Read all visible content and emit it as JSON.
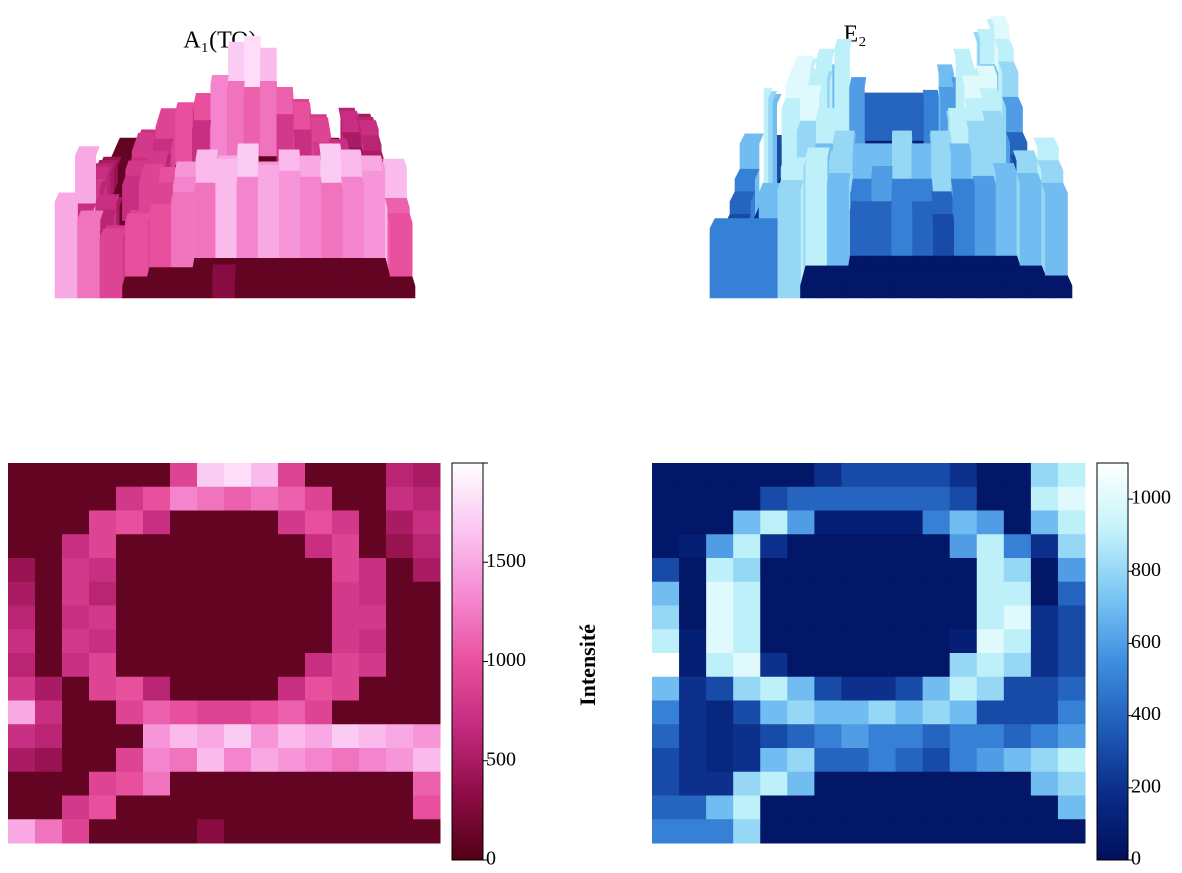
{
  "label": "Intensité",
  "chart_data": [
    {
      "type": "heatmap",
      "title": "A₁(TO)",
      "zlim": [
        0,
        2000
      ],
      "zticks": [
        0,
        500,
        1000,
        1500,
        {
          "value": 2000,
          "label": ""
        }
      ],
      "colors": [
        "#520014",
        "#8e0c46",
        "#c42a7e",
        "#e8509e",
        "#f58ad2",
        "#fbc6f2",
        "#ffffff"
      ],
      "z": [
        [
          100,
          100,
          100,
          100,
          100,
          100,
          900,
          1700,
          1800,
          1600,
          900,
          100,
          100,
          100,
          600,
          500
        ],
        [
          100,
          100,
          100,
          100,
          800,
          1000,
          1300,
          1200,
          1100,
          1200,
          1100,
          900,
          100,
          100,
          700,
          600
        ],
        [
          100,
          100,
          100,
          900,
          1000,
          700,
          100,
          100,
          100,
          100,
          800,
          1000,
          800,
          100,
          500,
          700
        ],
        [
          100,
          100,
          700,
          900,
          100,
          100,
          100,
          100,
          100,
          100,
          100,
          700,
          900,
          100,
          400,
          600
        ],
        [
          400,
          100,
          800,
          700,
          100,
          100,
          100,
          100,
          100,
          100,
          100,
          100,
          900,
          700,
          100,
          500
        ],
        [
          500,
          100,
          800,
          600,
          100,
          100,
          100,
          100,
          100,
          100,
          100,
          100,
          800,
          700,
          100,
          100
        ],
        [
          600,
          100,
          700,
          800,
          100,
          100,
          100,
          100,
          100,
          100,
          100,
          100,
          800,
          800,
          100,
          100
        ],
        [
          700,
          100,
          800,
          700,
          100,
          100,
          100,
          100,
          100,
          100,
          100,
          100,
          800,
          700,
          100,
          100
        ],
        [
          600,
          100,
          700,
          900,
          100,
          100,
          100,
          100,
          100,
          100,
          100,
          700,
          900,
          800,
          100,
          100
        ],
        [
          800,
          500,
          100,
          900,
          1000,
          600,
          100,
          100,
          100,
          100,
          700,
          1000,
          900,
          100,
          100,
          100
        ],
        [
          1500,
          700,
          100,
          100,
          900,
          1100,
          1000,
          900,
          900,
          1000,
          1100,
          900,
          100,
          100,
          100,
          100
        ],
        [
          700,
          600,
          100,
          100,
          100,
          1400,
          1600,
          1500,
          1700,
          1400,
          1600,
          1500,
          1700,
          1600,
          1500,
          1400
        ],
        [
          500,
          400,
          100,
          100,
          900,
          1300,
          1200,
          1600,
          1300,
          1500,
          1400,
          1300,
          1200,
          1300,
          1400,
          1600
        ],
        [
          100,
          100,
          100,
          900,
          1000,
          1200,
          100,
          100,
          100,
          100,
          100,
          100,
          100,
          100,
          100,
          1100
        ],
        [
          100,
          100,
          800,
          1000,
          100,
          100,
          100,
          100,
          100,
          100,
          100,
          100,
          100,
          100,
          100,
          1000
        ],
        [
          1500,
          1200,
          900,
          100,
          100,
          100,
          100,
          300,
          100,
          100,
          100,
          100,
          100,
          100,
          100,
          100
        ]
      ]
    },
    {
      "type": "heatmap",
      "title": "E₂",
      "zlim": [
        0,
        1100
      ],
      "zticks": [
        0,
        200,
        400,
        600,
        800,
        1000
      ],
      "colors": [
        "#000f5c",
        "#0a2c88",
        "#1f5cb8",
        "#3f8ee0",
        "#7cc6f4",
        "#c4f4fa",
        "#ffffff"
      ],
      "z": [
        [
          50,
          50,
          50,
          50,
          50,
          50,
          200,
          300,
          300,
          300,
          300,
          200,
          50,
          50,
          800,
          900
        ],
        [
          50,
          50,
          50,
          50,
          300,
          400,
          400,
          400,
          400,
          400,
          400,
          300,
          50,
          50,
          900,
          1000
        ],
        [
          50,
          50,
          50,
          700,
          900,
          600,
          100,
          100,
          100,
          100,
          500,
          700,
          600,
          50,
          700,
          900
        ],
        [
          50,
          100,
          600,
          900,
          200,
          50,
          50,
          50,
          50,
          50,
          50,
          600,
          900,
          500,
          200,
          800
        ],
        [
          300,
          50,
          900,
          800,
          50,
          50,
          50,
          50,
          50,
          50,
          50,
          50,
          900,
          800,
          50,
          600
        ],
        [
          700,
          50,
          1000,
          900,
          50,
          50,
          50,
          50,
          50,
          50,
          50,
          50,
          900,
          900,
          50,
          400
        ],
        [
          800,
          50,
          1000,
          900,
          50,
          50,
          50,
          50,
          50,
          50,
          50,
          50,
          900,
          1000,
          200,
          300
        ],
        [
          900,
          100,
          1000,
          900,
          50,
          50,
          50,
          50,
          50,
          50,
          50,
          100,
          1000,
          900,
          200,
          300
        ],
        [
          1100,
          100,
          900,
          1000,
          200,
          50,
          50,
          50,
          50,
          50,
          50,
          800,
          900,
          800,
          200,
          300
        ],
        [
          700,
          200,
          300,
          800,
          900,
          700,
          300,
          200,
          200,
          300,
          700,
          900,
          800,
          300,
          300,
          400
        ],
        [
          500,
          200,
          150,
          300,
          700,
          800,
          700,
          700,
          800,
          700,
          800,
          700,
          300,
          300,
          300,
          500
        ],
        [
          400,
          200,
          150,
          200,
          300,
          400,
          500,
          600,
          500,
          500,
          400,
          500,
          500,
          400,
          500,
          600
        ],
        [
          300,
          200,
          150,
          200,
          700,
          800,
          400,
          400,
          500,
          400,
          300,
          500,
          600,
          700,
          800,
          900
        ],
        [
          300,
          200,
          200,
          800,
          900,
          700,
          50,
          50,
          50,
          50,
          50,
          50,
          50,
          50,
          700,
          800
        ],
        [
          400,
          400,
          700,
          900,
          50,
          50,
          50,
          50,
          50,
          50,
          50,
          50,
          50,
          50,
          50,
          700
        ],
        [
          500,
          500,
          500,
          800,
          50,
          50,
          50,
          50,
          50,
          50,
          50,
          50,
          50,
          50,
          50,
          50
        ]
      ]
    }
  ]
}
